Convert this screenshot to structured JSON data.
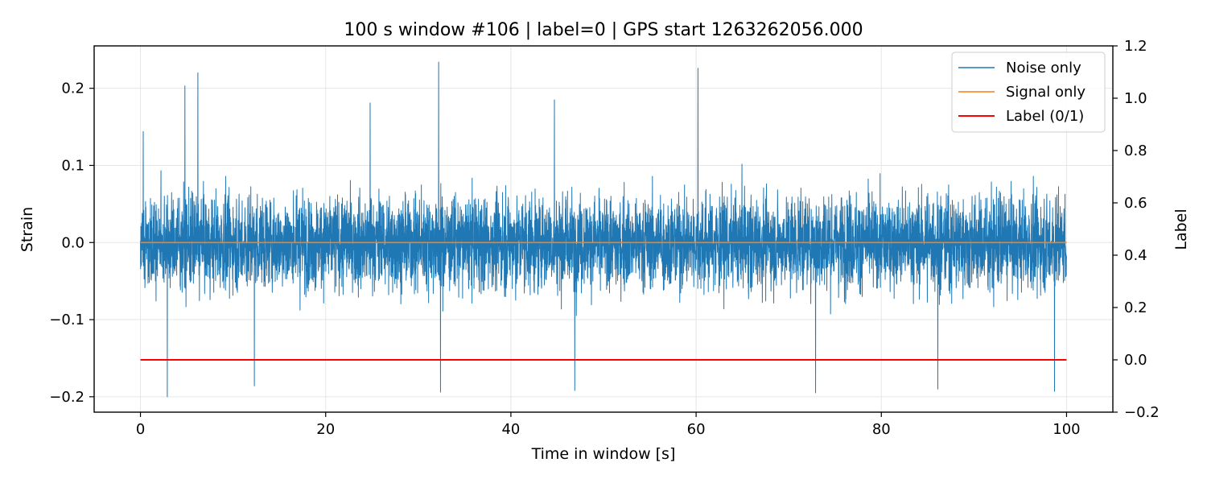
{
  "chart_data": {
    "type": "line",
    "title": "100 s window #106 | label=0 | GPS start 1263262056.000",
    "xlabel": "Time in window [s]",
    "ylabel": "Strain",
    "y2label": "Label",
    "xlim": [
      -5,
      105
    ],
    "ylim": [
      -0.22,
      0.255
    ],
    "y2lim": [
      -0.2,
      1.2
    ],
    "xticks": [
      0,
      20,
      40,
      60,
      80,
      100
    ],
    "xtick_labels": [
      "0",
      "20",
      "40",
      "60",
      "80",
      "100"
    ],
    "yticks": [
      -0.2,
      -0.1,
      0.0,
      0.1,
      0.2
    ],
    "ytick_labels": [
      "−0.2",
      "−0.1",
      "0.0",
      "0.1",
      "0.2"
    ],
    "y2ticks": [
      -0.2,
      0.0,
      0.2,
      0.4,
      0.6,
      0.8,
      1.0,
      1.2
    ],
    "y2tick_labels": [
      "−0.2",
      "0.0",
      "0.2",
      "0.4",
      "0.6",
      "0.8",
      "1.0",
      "1.2"
    ],
    "grid": true,
    "legend_position": "top-right",
    "series": [
      {
        "name": "Noise only",
        "axis": "left",
        "color": "#1f77b4",
        "x_range": [
          0,
          100
        ],
        "typical_amplitude": 0.1,
        "peaks": [
          {
            "x": 4.8,
            "y": 0.203
          },
          {
            "x": 6.2,
            "y": 0.22
          },
          {
            "x": 32.2,
            "y": 0.234
          },
          {
            "x": 60.2,
            "y": 0.226
          },
          {
            "x": 0.3,
            "y": 0.144
          },
          {
            "x": 24.8,
            "y": 0.181
          },
          {
            "x": 44.7,
            "y": 0.185
          },
          {
            "x": 2.9,
            "y": -0.2
          },
          {
            "x": 12.3,
            "y": -0.186
          },
          {
            "x": 32.4,
            "y": -0.194
          },
          {
            "x": 46.9,
            "y": -0.192
          },
          {
            "x": 72.9,
            "y": -0.195
          },
          {
            "x": 98.7,
            "y": -0.193
          },
          {
            "x": 86.1,
            "y": -0.19
          }
        ]
      },
      {
        "name": "Signal only",
        "axis": "left",
        "color": "#ff7f0e",
        "x": [
          0,
          100
        ],
        "y": [
          0.0,
          0.0
        ]
      },
      {
        "name": "Label (0/1)",
        "axis": "right",
        "color": "#ff0000",
        "x": [
          0,
          100
        ],
        "y": [
          0,
          0
        ]
      }
    ]
  }
}
